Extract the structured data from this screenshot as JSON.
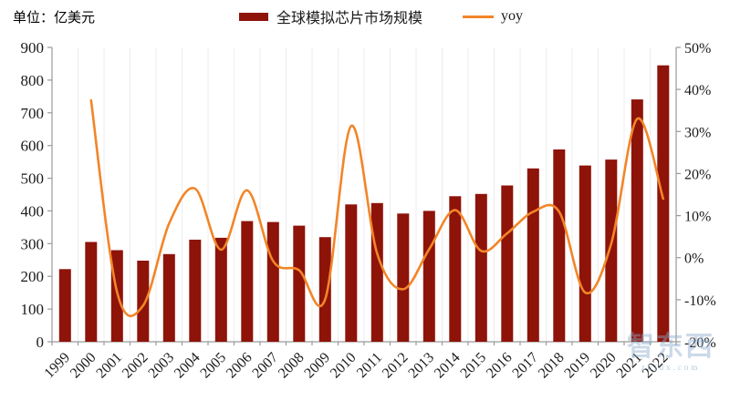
{
  "header": {
    "unit_label": "单位：亿美元"
  },
  "legend": {
    "items": [
      {
        "label": "全球模拟芯片市场规模",
        "swatch": "bar",
        "color": "#8E1309"
      },
      {
        "label": "yoy",
        "swatch": "line",
        "color": "#F28528"
      }
    ]
  },
  "watermark": {
    "text": "智东西",
    "subtext": "zhidx.com"
  },
  "chart_data": {
    "type": "bar",
    "categories": [
      "1999",
      "2000",
      "2001",
      "2002",
      "2003",
      "2004",
      "2005",
      "2006",
      "2007",
      "2008",
      "2009",
      "2010",
      "2011",
      "2012",
      "2013",
      "2014",
      "2015",
      "2016",
      "2017",
      "2018",
      "2019",
      "2020",
      "2021",
      "2022"
    ],
    "series": [
      {
        "name": "全球模拟芯片市场规模",
        "type": "bar",
        "axis": "left",
        "color": "#8E1309",
        "values": [
          222,
          305,
          280,
          248,
          268,
          312,
          318,
          369,
          366,
          355,
          320,
          420,
          424,
          392,
          400,
          445,
          452,
          478,
          530,
          588,
          539,
          557,
          741,
          845
        ]
      },
      {
        "name": "yoy",
        "type": "line",
        "axis": "right",
        "color": "#F28528",
        "values": [
          null,
          37.4,
          -8.2,
          -11.4,
          8.1,
          16.4,
          1.9,
          16.0,
          -0.8,
          -3.0,
          -9.9,
          31.3,
          1.0,
          -7.5,
          2.0,
          11.3,
          1.6,
          5.8,
          10.9,
          10.9,
          -8.3,
          3.3,
          33.0,
          14.0
        ]
      }
    ],
    "left_axis": {
      "unit": "亿美元",
      "min": 0,
      "max": 900,
      "step": 100,
      "tick_labels": [
        "0",
        "100",
        "200",
        "300",
        "400",
        "500",
        "600",
        "700",
        "800",
        "900"
      ]
    },
    "right_axis": {
      "unit": "%",
      "min": -20,
      "max": 50,
      "step": 10,
      "tick_labels": [
        "-20%",
        "-10%",
        "0%",
        "10%",
        "20%",
        "30%",
        "40%",
        "50%"
      ]
    },
    "legend_position": "top",
    "grid": {
      "vertical": true,
      "horizontal": false
    },
    "axis_color": "#9a9a9a",
    "grid_color": "#ededed",
    "tick_text_color": "#1a1a1a"
  }
}
